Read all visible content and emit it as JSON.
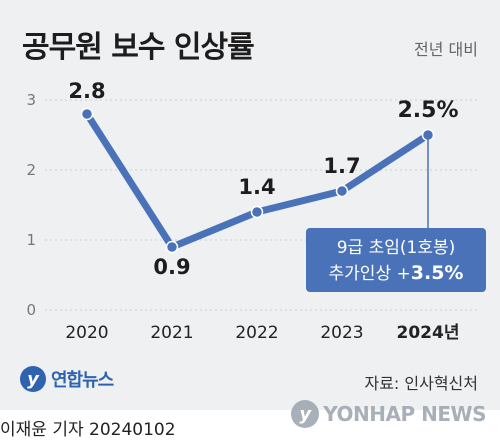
{
  "title": "공무원 보수 인상률",
  "subtitle": "전년 대비",
  "chart_data": {
    "type": "line",
    "categories": [
      "2020",
      "2021",
      "2022",
      "2023",
      "2024년"
    ],
    "values": [
      2.8,
      0.9,
      1.4,
      1.7,
      2.5
    ],
    "data_labels": [
      "2.8",
      "0.9",
      "1.4",
      "1.7",
      "2.5%"
    ],
    "ylim": [
      0,
      3
    ],
    "yticks": [
      "0",
      "1",
      "2",
      "3"
    ],
    "grid": true,
    "line_color": "#4a72b8",
    "annotation": {
      "line1": "9급 초임(1호봉)",
      "line2_prefix": "추가인상 +",
      "line2_value": "3.5%",
      "bg_color": "#4a72b8"
    }
  },
  "logo": {
    "name": "연합뉴스"
  },
  "source": "자료: 인사혁신처",
  "byline": "이재윤 기자  20240102",
  "watermark": "YONHAP NEWS"
}
